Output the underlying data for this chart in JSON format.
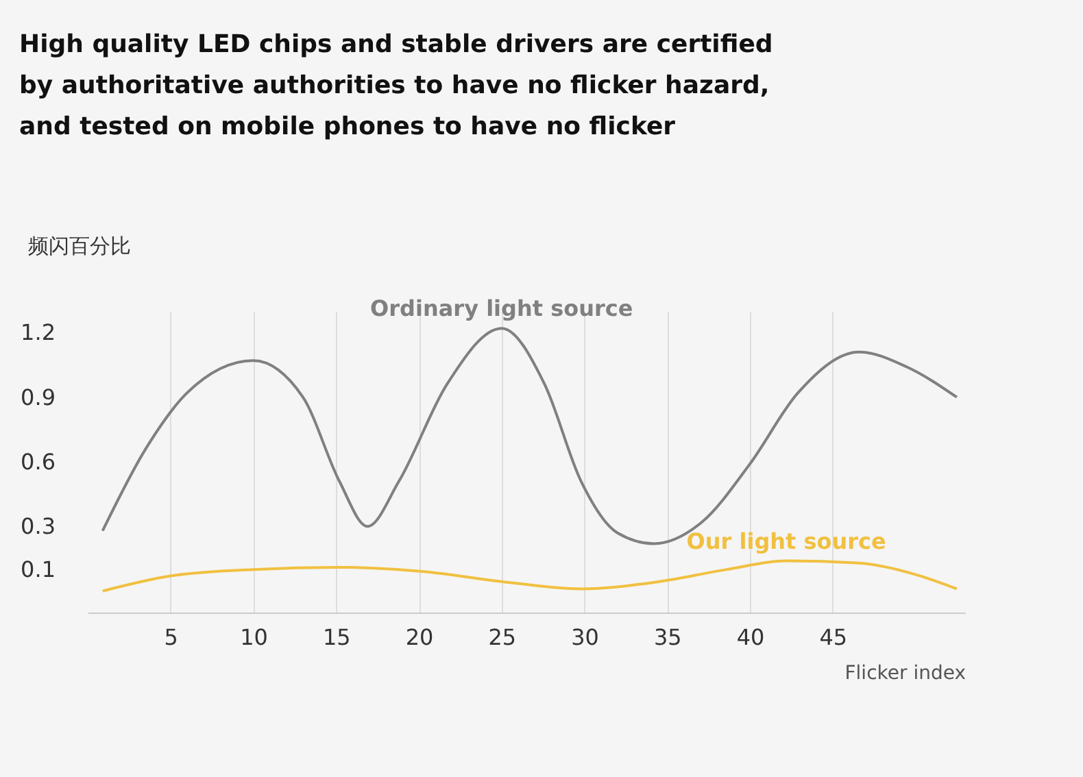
{
  "chart_data": {
    "type": "line",
    "title": "High quality LED chips and stable drivers are certified\nby authoritative authorities to have no flicker hazard,\nand tested on mobile phones to have no flicker",
    "ylabel": "频闪百分比",
    "xlabel": "Flicker index",
    "xlim": [
      0,
      53
    ],
    "xticks": [
      5,
      10,
      15,
      20,
      25,
      30,
      35,
      40,
      45
    ],
    "ylim": [
      -0.1,
      1.3
    ],
    "yticks": [
      0.1,
      0.3,
      0.6,
      0.9,
      1.2
    ],
    "grid": "x",
    "legend": false,
    "marker": "none",
    "line_style": "solid",
    "series": [
      {
        "name": "Ordinary light source",
        "color": "#808080",
        "x": [
          0.9,
          3.5,
          6,
          10,
          13,
          15.2,
          16.9,
          18.8,
          21.7,
          25,
          27.6,
          29.8,
          32,
          34.2,
          37.1,
          40,
          42.9,
          46.6,
          49.5,
          52.5
        ],
        "values": [
          0.28,
          0.66,
          0.92,
          1.07,
          0.9,
          0.51,
          0.3,
          0.51,
          0.96,
          1.22,
          0.96,
          0.51,
          0.27,
          0.22,
          0.32,
          0.59,
          0.92,
          1.11,
          1.04,
          0.9
        ]
      },
      {
        "name": "Our light source",
        "color": "#f0c040",
        "x": [
          0.9,
          5,
          10,
          15.2,
          20.3,
          25.4,
          29.8,
          34.2,
          38.6,
          42.2,
          46.6,
          50.3,
          52.5
        ],
        "values": [
          0.0,
          0.07,
          0.1,
          0.11,
          0.09,
          0.04,
          0.01,
          0.04,
          0.1,
          0.14,
          0.13,
          0.07,
          0.01
        ]
      }
    ]
  }
}
